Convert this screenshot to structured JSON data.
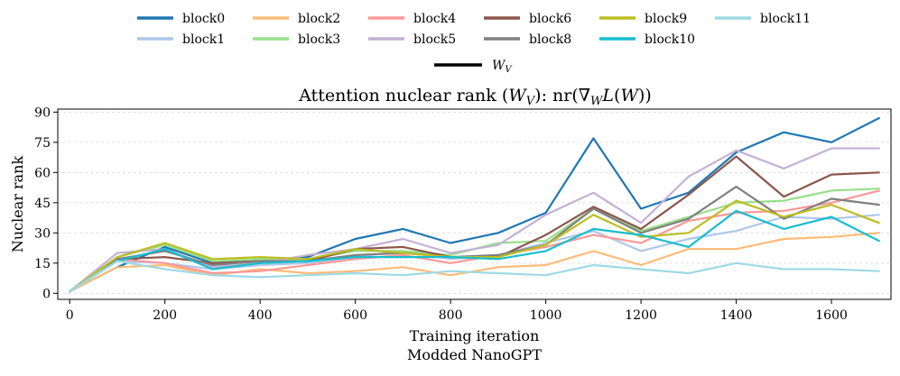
{
  "chart_data": {
    "type": "line",
    "title": "Attention nuclear rank (W_V): nr(∇_W L(W))",
    "title_parts": {
      "lead": "Attention nuclear rank (",
      "var": "W",
      "sub": "V",
      "mid": "): nr(∇",
      "grad_sub": "W",
      "loss": "L",
      "open": "(",
      "arg": "W",
      "close": "))"
    },
    "xlabel": "Training iteration",
    "ylabel": "Nuclear rank",
    "subtitle": "Modded NanoGPT",
    "xlim": [
      -25,
      1725
    ],
    "ylim": [
      -3,
      91.5
    ],
    "xticks": [
      0,
      200,
      400,
      600,
      800,
      1000,
      1200,
      1400,
      1600
    ],
    "yticks": [
      0,
      15,
      30,
      45,
      60,
      75,
      90
    ],
    "grid": "horizontal dashed",
    "x": [
      0,
      100,
      200,
      300,
      400,
      500,
      600,
      700,
      800,
      900,
      1000,
      1100,
      1200,
      1300,
      1400,
      1500,
      1600,
      1700
    ],
    "legend_var": {
      "name": "W",
      "sub": "V"
    },
    "series": [
      {
        "name": "block0",
        "color": "#1f77b4",
        "values": [
          1,
          13,
          23,
          15,
          16,
          18,
          27,
          32,
          25,
          30,
          40,
          77,
          42,
          50,
          70,
          80,
          75,
          87
        ]
      },
      {
        "name": "block1",
        "color": "#aec7e8",
        "values": [
          1,
          16,
          15,
          12,
          14,
          15,
          18,
          21,
          17,
          19,
          25,
          31,
          21,
          27,
          31,
          38,
          37,
          39
        ]
      },
      {
        "name": "block2",
        "color": "#ffbb78",
        "values": [
          1,
          13,
          14,
          9,
          12,
          10,
          11,
          13,
          9,
          13,
          14,
          21,
          14,
          22,
          22,
          27,
          28,
          30
        ]
      },
      {
        "name": "block3",
        "color": "#98df8a",
        "values": [
          1,
          18,
          24,
          16,
          17,
          17,
          21,
          21,
          19,
          25,
          26,
          42,
          31,
          38,
          45,
          46,
          51,
          52
        ]
      },
      {
        "name": "block4",
        "color": "#ff9896",
        "values": [
          1,
          17,
          15,
          10,
          11,
          14,
          17,
          19,
          15,
          19,
          23,
          29,
          25,
          36,
          40,
          41,
          45,
          51
        ]
      },
      {
        "name": "block5",
        "color": "#c5b0d5",
        "values": [
          1,
          20,
          22,
          13,
          15,
          19,
          22,
          27,
          20,
          24,
          39,
          50,
          35,
          58,
          71,
          62,
          72,
          72
        ]
      },
      {
        "name": "block6",
        "color": "#8c564b",
        "values": [
          1,
          17,
          18,
          15,
          16,
          16,
          22,
          23,
          18,
          18,
          29,
          43,
          32,
          49,
          68,
          48,
          59,
          60
        ]
      },
      {
        "name": "block8",
        "color": "#7f7f7f",
        "values": [
          1,
          17,
          21,
          14,
          16,
          16,
          19,
          20,
          18,
          19,
          24,
          42,
          30,
          37,
          53,
          37,
          47,
          44
        ]
      },
      {
        "name": "block9",
        "color": "#bcbd22",
        "values": [
          1,
          18,
          25,
          17,
          18,
          17,
          22,
          20,
          18,
          18,
          24,
          39,
          28,
          30,
          46,
          38,
          44,
          35
        ]
      },
      {
        "name": "block10",
        "color": "#17becf",
        "values": [
          1,
          16,
          22,
          12,
          15,
          16,
          18,
          18,
          18,
          17,
          21,
          32,
          29,
          23,
          41,
          32,
          38,
          26
        ]
      },
      {
        "name": "block11",
        "color": "#9edae5",
        "values": [
          1,
          16,
          12,
          9,
          8,
          9,
          10,
          9,
          11,
          10,
          9,
          14,
          12,
          10,
          15,
          12,
          12,
          11
        ]
      }
    ]
  }
}
